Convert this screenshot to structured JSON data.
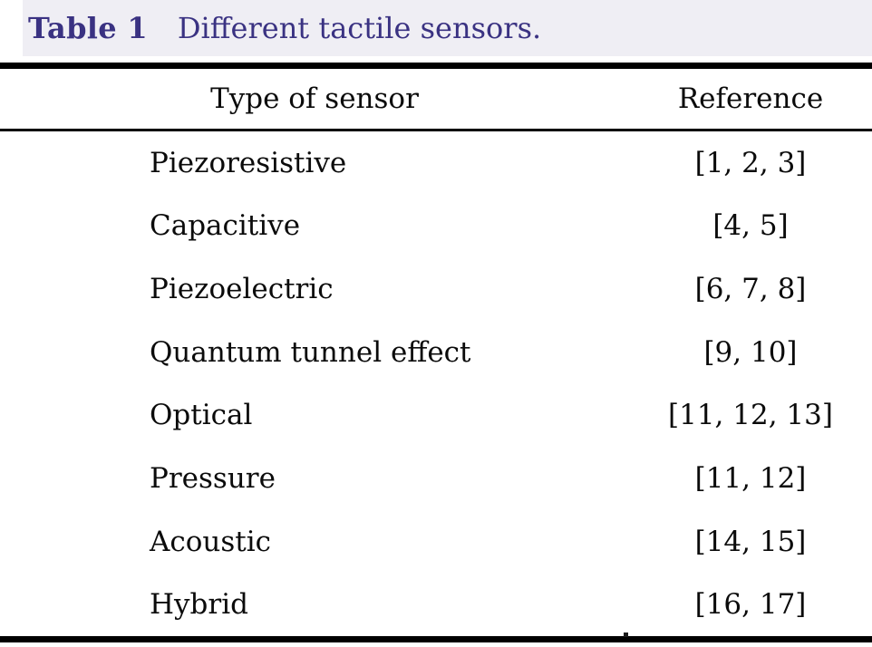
{
  "colors": {
    "caption_text": "#3a3282",
    "caption_background": "#efeef4",
    "rule": "#000000",
    "body_text": "#0b0b0b"
  },
  "table": {
    "number_label": "Table 1",
    "caption": "Different tactile sensors.",
    "columns": [
      {
        "label": "Type of sensor"
      },
      {
        "label": "Reference"
      }
    ],
    "rows": [
      {
        "type": "Piezoresistive",
        "reference": "[1, 2, 3]"
      },
      {
        "type": "Capacitive",
        "reference": "[4, 5]"
      },
      {
        "type": "Piezoelectric",
        "reference": "[6, 7, 8]"
      },
      {
        "type": "Quantum tunnel effect",
        "reference": "[9, 10]"
      },
      {
        "type": "Optical",
        "reference": "[11, 12, 13]"
      },
      {
        "type": "Pressure",
        "reference": "[11, 12]"
      },
      {
        "type": "Acoustic",
        "reference": "[14, 15]"
      },
      {
        "type": "Hybrid",
        "reference": "[16, 17]"
      }
    ]
  }
}
